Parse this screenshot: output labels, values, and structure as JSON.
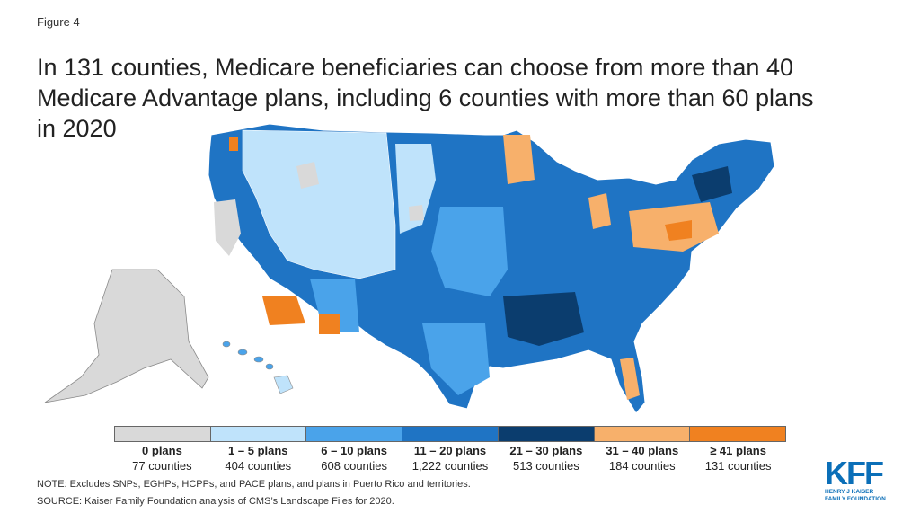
{
  "figure_label": "Figure 4",
  "title_lines": [
    "In 131 counties, Medicare beneficiaries can choose from more than 40",
    "Medicare Advantage plans, including 6 counties with more than 60 plans",
    "in 2020"
  ],
  "legend": [
    {
      "label": "0 plans",
      "count": "77 counties",
      "color": "#d9d9d9"
    },
    {
      "label": "1 – 5 plans",
      "count": "404 counties",
      "color": "#bfe3fb"
    },
    {
      "label": "6 – 10 plans",
      "count": "608 counties",
      "color": "#4aa3ea"
    },
    {
      "label": "11 – 20 plans",
      "count": "1,222 counties",
      "color": "#1f74c4"
    },
    {
      "label": "21 – 30 plans",
      "count": "513 counties",
      "color": "#0b3d6e"
    },
    {
      "label": "31 – 40 plans",
      "count": "184 counties",
      "color": "#f7b06b"
    },
    {
      "label": "≥ 41 plans",
      "count": "131 counties",
      "color": "#f08120"
    }
  ],
  "note": "NOTE: Excludes SNPs, EGHPs, HCPPs, and PACE plans, and plans in Puerto Rico and territories.",
  "source": "SOURCE: Kaiser Family Foundation analysis of CMS’s Landscape Files for 2020.",
  "logo": {
    "mark": "KFF",
    "lines": [
      "HENRY J KAISER",
      "FAMILY FOUNDATION"
    ]
  }
}
